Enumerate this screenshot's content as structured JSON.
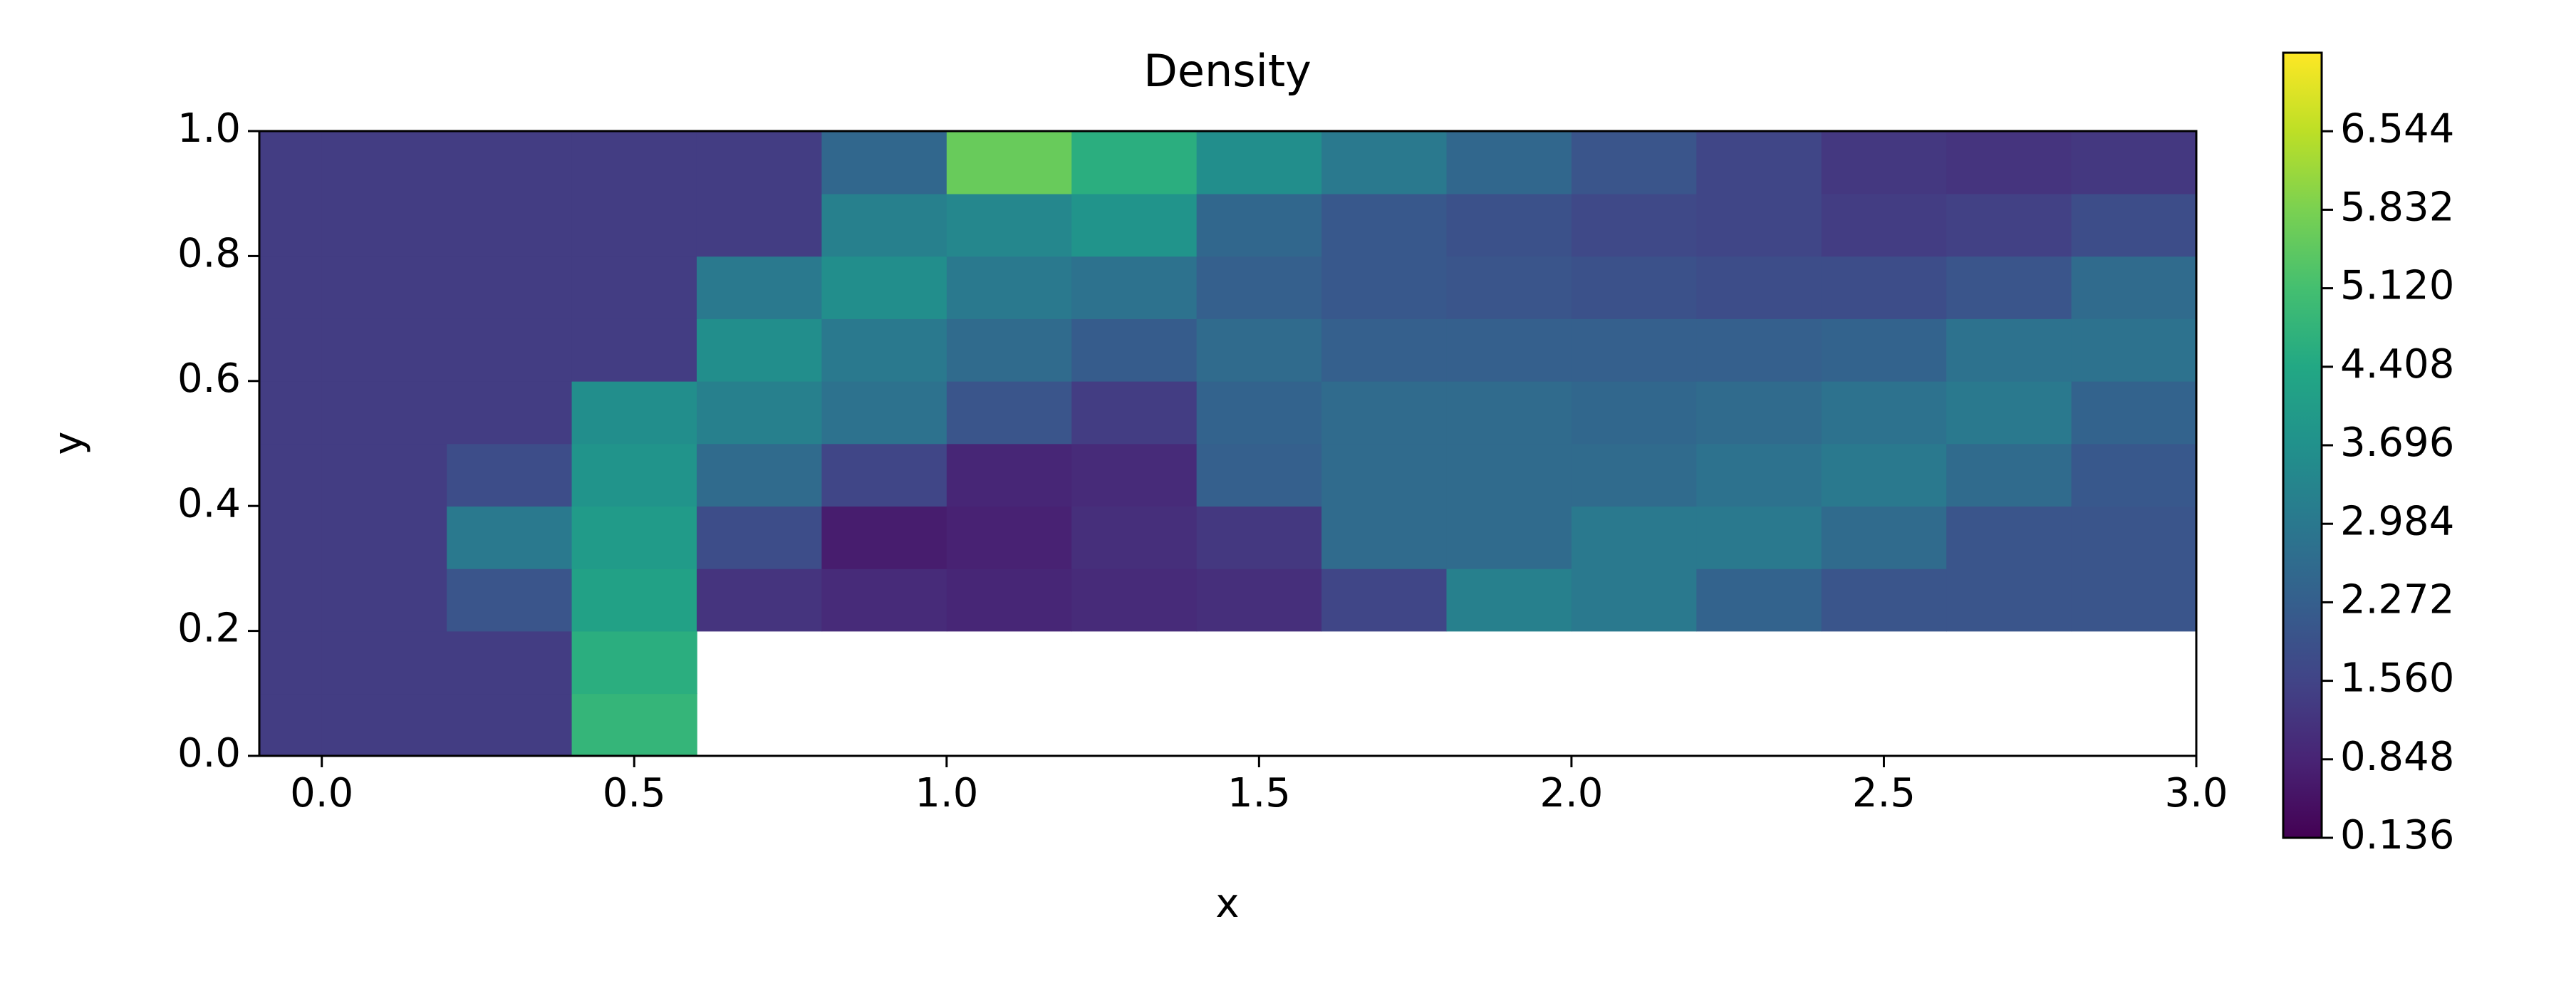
{
  "chart_data": {
    "type": "heatmap",
    "title": "Density",
    "x_label": "x",
    "y_label": "y",
    "colormap": "viridis",
    "x_edges": [
      -0.1,
      0.0,
      0.2,
      0.4,
      0.6,
      0.8,
      1.0,
      1.2,
      1.4,
      1.6,
      1.8,
      2.0,
      2.2,
      2.4,
      2.6,
      2.8,
      3.0
    ],
    "y_edges": [
      0.0,
      0.1,
      0.2,
      0.3,
      0.4,
      0.5,
      0.6,
      0.7,
      0.8,
      0.9,
      1.0
    ],
    "z": [
      [
        1.4,
        1.4,
        1.4,
        4.8,
        null,
        null,
        null,
        null,
        null,
        null,
        null,
        null,
        null,
        null,
        null,
        null
      ],
      [
        1.4,
        1.4,
        1.4,
        4.6,
        null,
        null,
        null,
        null,
        null,
        null,
        null,
        null,
        null,
        null,
        null,
        null
      ],
      [
        1.4,
        1.4,
        2.0,
        4.2,
        1.2,
        1.0,
        0.9,
        1.0,
        1.1,
        1.6,
        3.2,
        3.0,
        2.4,
        2.0,
        2.0,
        2.0
      ],
      [
        1.4,
        1.4,
        3.0,
        4.0,
        1.8,
        0.7,
        0.8,
        1.1,
        1.3,
        2.6,
        2.6,
        3.0,
        3.0,
        2.6,
        2.0,
        2.0
      ],
      [
        1.4,
        1.4,
        1.8,
        3.8,
        2.6,
        1.6,
        0.9,
        1.0,
        2.3,
        2.6,
        2.6,
        2.6,
        2.8,
        3.0,
        2.6,
        2.1
      ],
      [
        1.4,
        1.4,
        1.4,
        3.6,
        3.2,
        2.8,
        2.0,
        1.4,
        2.4,
        2.6,
        2.6,
        2.5,
        2.6,
        2.8,
        3.0,
        2.4
      ],
      [
        1.4,
        1.4,
        1.4,
        1.4,
        3.6,
        3.0,
        2.6,
        2.2,
        2.6,
        2.3,
        2.3,
        2.3,
        2.3,
        2.4,
        2.8,
        2.8
      ],
      [
        1.4,
        1.4,
        1.4,
        1.4,
        3.0,
        3.6,
        3.0,
        2.8,
        2.3,
        2.1,
        2.0,
        1.9,
        1.8,
        1.8,
        2.0,
        2.6
      ],
      [
        1.4,
        1.4,
        1.4,
        1.4,
        1.4,
        3.2,
        3.4,
        3.8,
        2.5,
        2.1,
        1.9,
        1.7,
        1.6,
        1.4,
        1.5,
        1.8
      ],
      [
        1.4,
        1.4,
        1.4,
        1.4,
        1.4,
        2.5,
        5.6,
        4.6,
        3.6,
        3.0,
        2.5,
        2.0,
        1.6,
        1.3,
        1.2,
        1.3
      ]
    ],
    "xlim": [
      -0.1,
      3.0
    ],
    "ylim": [
      0.0,
      1.0
    ],
    "xticks": [
      {
        "value": 0,
        "label": "0.0"
      },
      0.5,
      {
        "value": 1,
        "label": "1.0"
      },
      1.5,
      {
        "value": 2,
        "label": "2.0"
      },
      2.5,
      {
        "value": 3,
        "label": "3.0"
      }
    ],
    "yticks": [
      {
        "value": 0,
        "label": "0.0"
      },
      0.2,
      0.4,
      0.6,
      0.8,
      {
        "value": 1,
        "label": "1.0"
      }
    ],
    "zlim": [
      0.136,
      7.256
    ],
    "colorbar_ticks": [
      0.136,
      0.848,
      {
        "value": 1.56,
        "label": "1.560"
      },
      2.272,
      2.984,
      3.696,
      4.408,
      {
        "value": 5.12,
        "label": "5.120"
      },
      5.832,
      6.544
    ]
  }
}
